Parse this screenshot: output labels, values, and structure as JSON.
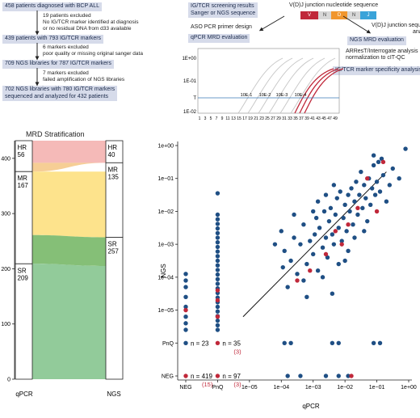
{
  "flow": {
    "b1": "458 patients diagnosed with BCP ALL",
    "e1": [
      "19 patients excluded",
      "No IG/TCR marker identified at diagnosis",
      "or no residual DNA from d33 available"
    ],
    "b2": "439 patients with 793 IG/TCR markers",
    "e2": [
      "6 markers excluded",
      "poor quality or missing original sanger data"
    ],
    "b3": "709 NGS libraries for 787 IG/TCR markers",
    "e3": [
      "7 markers excluded",
      "failed amplification of NGS libraries"
    ],
    "b4": [
      "702 NGS libraries with 780 IG/TCR markers",
      "sequenced and analyzed for 432 patients"
    ]
  },
  "workflow": {
    "screen": [
      "IG/TCR screening results",
      "Sanger or NGS sequence"
    ],
    "junction_title": "V(D)J junction nucleotide sequence",
    "segments": [
      "V",
      "N",
      "D",
      "N",
      "J"
    ],
    "aso": "ASO PCR primer design",
    "qpcr_eval": "qPCR MRD evaluation",
    "vdj_analysis": [
      "V(D)J junction sequence",
      "analysis"
    ],
    "ngs_eval": "NGS MRD evaluation",
    "arrest": [
      "ARResT/Interrogate analysis",
      "normalization to cIT-QC"
    ],
    "specificity": "IG/TCR marker specificity analysis"
  },
  "pcr_plot": {
    "y_ticks": [
      "1E+00",
      "1E-01",
      "T",
      "1E-02"
    ],
    "x_ticks": [
      "1",
      "3",
      "5",
      "7",
      "9",
      "11",
      "13",
      "15",
      "17",
      "19",
      "21",
      "23",
      "25",
      "27",
      "29",
      "31",
      "33",
      "35",
      "37",
      "39",
      "41",
      "43",
      "45",
      "47",
      "49"
    ],
    "dilutions": [
      "10E-1",
      "10E-2",
      "10E-3",
      "10E-4"
    ]
  },
  "sankey": {
    "title": "MRD Stratification",
    "y_ticks": [
      "0",
      "100",
      "200",
      "300",
      "400"
    ],
    "x_labels": [
      "qPCR",
      "NGS"
    ],
    "left": [
      {
        "name": "HR",
        "n": "56"
      },
      {
        "name": "MR",
        "n": "167"
      },
      {
        "name": "SR",
        "n": "209"
      }
    ],
    "right": [
      {
        "name": "HR",
        "n": "40"
      },
      {
        "name": "MR",
        "n": "135"
      },
      {
        "name": "SR",
        "n": "257"
      }
    ],
    "colors": {
      "HR": "#f4b3b0",
      "MR": "#fde07f",
      "SR": "#86c58f",
      "flow_mr_hr": "#f5c98a",
      "flow_mr_sr": "#78b868"
    }
  },
  "chart_data": {
    "type": "scatter",
    "xlabel": "qPCR",
    "ylabel": "NGS",
    "x_ticks": [
      "NEG",
      "PnQ",
      "1e−05",
      "1e−04",
      "1e−03",
      "1e−02",
      "1e−01",
      "1e+00"
    ],
    "y_ticks": [
      "NEG",
      "PnQ",
      "1e−05",
      "1e−04",
      "1e−03",
      "1e−02",
      "1e−01",
      "1e+00"
    ],
    "log_scale": true,
    "colors": {
      "blue": "#1f4f84",
      "red": "#c0283a"
    },
    "annotations": [
      {
        "at": "PnQ/NEG",
        "text": "n = 23"
      },
      {
        "at": "PnQ/PnQ",
        "text": "n = 35",
        "sub": "(3)"
      },
      {
        "at": "NEG/NEG",
        "text": "n = 419",
        "sub": "(15)"
      },
      {
        "at": "NEG/PnQ",
        "text": "n = 97",
        "sub": "(3)"
      }
    ],
    "fit_line": [
      [
        -5.2,
        -5.2
      ],
      [
        -0.7,
        -0.8
      ]
    ],
    "points_blue": [
      [
        -4.2,
        -3.0
      ],
      [
        -4.0,
        -2.6
      ],
      [
        -3.9,
        -3.2
      ],
      [
        -3.7,
        -3.5
      ],
      [
        -3.6,
        -2.8
      ],
      [
        -3.5,
        -3.9
      ],
      [
        -3.4,
        -3.0
      ],
      [
        -3.3,
        -2.4
      ],
      [
        -3.2,
        -3.6
      ],
      [
        -3.1,
        -2.9
      ],
      [
        -3.0,
        -3.3
      ],
      [
        -2.95,
        -2.7
      ],
      [
        -2.9,
        -2.2
      ],
      [
        -2.85,
        -3.8
      ],
      [
        -2.8,
        -2.5
      ],
      [
        -2.7,
        -3.1
      ],
      [
        -2.65,
        -2.0
      ],
      [
        -2.6,
        -2.8
      ],
      [
        -2.55,
        -3.4
      ],
      [
        -2.5,
        -2.3
      ],
      [
        -2.45,
        -1.9
      ],
      [
        -2.4,
        -2.7
      ],
      [
        -2.35,
        -3.0
      ],
      [
        -2.3,
        -2.1
      ],
      [
        -2.25,
        -1.6
      ],
      [
        -2.2,
        -2.5
      ],
      [
        -2.15,
        -1.4
      ],
      [
        -2.1,
        -2.9
      ],
      [
        -2.05,
        -2.2
      ],
      [
        -2.0,
        -1.8
      ],
      [
        -1.95,
        -2.6
      ],
      [
        -1.9,
        -1.5
      ],
      [
        -1.85,
        -2.0
      ],
      [
        -1.8,
        -1.3
      ],
      [
        -1.75,
        -2.4
      ],
      [
        -1.7,
        -1.7
      ],
      [
        -1.65,
        -1.1
      ],
      [
        -1.6,
        -2.1
      ],
      [
        -1.55,
        -1.5
      ],
      [
        -1.5,
        -0.8
      ],
      [
        -1.45,
        -1.9
      ],
      [
        -1.4,
        -1.2
      ],
      [
        -1.35,
        -1.6
      ],
      [
        -1.3,
        -2.3
      ],
      [
        -1.25,
        -1.0
      ],
      [
        -1.2,
        -1.8
      ],
      [
        -1.15,
        -1.3
      ],
      [
        -1.1,
        -0.6
      ],
      [
        -1.05,
        -1.5
      ],
      [
        -1.0,
        -1.1
      ],
      [
        -0.95,
        -0.5
      ],
      [
        -0.9,
        -1.4
      ],
      [
        -0.8,
        -0.9
      ],
      [
        -0.7,
        -1.7
      ],
      [
        -0.6,
        -1.2
      ],
      [
        -0.5,
        -0.7
      ],
      [
        -0.3,
        -1.0
      ],
      [
        -0.1,
        -0.1
      ],
      [
        -3.8,
        -4.3
      ],
      [
        -3.2,
        -4.6
      ],
      [
        -2.7,
        -4.0
      ],
      [
        -2.4,
        -4.5
      ],
      [
        -3.6,
        -2.1
      ],
      [
        -2.2,
        -3.6
      ],
      [
        -1.9,
        -3.2
      ],
      [
        -3.95,
        -3.7
      ],
      [
        -2.6,
        -1.5
      ],
      [
        -1.4,
        -2.6
      ],
      [
        -2.0,
        -3.5
      ],
      [
        -3.0,
        -2.0
      ],
      [
        -1.1,
        -0.3
      ],
      [
        -1.7,
        -2.8
      ],
      [
        -2.85,
        -1.7
      ],
      [
        -3.3,
        -4.1
      ],
      [
        -2.35,
        -1.2
      ],
      [
        -0.85,
        -0.4
      ]
    ],
    "points_red": [
      [
        -3.5,
        -4.1
      ],
      [
        -3.1,
        -3.8
      ],
      [
        -2.6,
        -3.3
      ],
      [
        -2.3,
        -2.6
      ],
      [
        -1.9,
        -2.4
      ],
      [
        -1.6,
        -1.9
      ],
      [
        -1.3,
        -1.0
      ],
      [
        -1.0,
        -2.0
      ],
      [
        -0.8,
        -0.5
      ],
      [
        -2.1,
        -3.0
      ]
    ]
  }
}
